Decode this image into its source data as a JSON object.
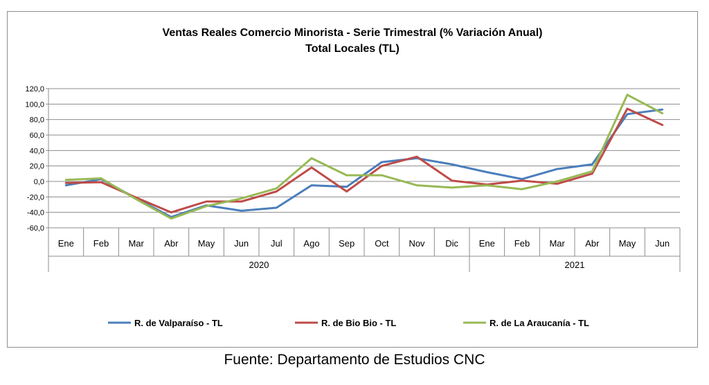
{
  "chart_data": {
    "type": "line",
    "title": "Ventas Reales Comercio Minorista - Serie Trimestral (% Variación Anual)",
    "subtitle": "Total Locales (TL)",
    "categories": [
      "Ene",
      "Feb",
      "Mar",
      "Abr",
      "May",
      "Jun",
      "Jul",
      "Ago",
      "Sep",
      "Oct",
      "Nov",
      "Dic",
      "Ene",
      "Feb",
      "Mar",
      "Abr",
      "May",
      "Jun"
    ],
    "groups": [
      {
        "label": "2020",
        "start": 0,
        "end": 11
      },
      {
        "label": "2021",
        "start": 12,
        "end": 17
      }
    ],
    "ylim": [
      -60,
      120
    ],
    "yticks": [
      "-60,0",
      "-40,0",
      "-20,0",
      "0,0",
      "20,0",
      "40,0",
      "60,0",
      "80,0",
      "100,0",
      "120,0"
    ],
    "grid": true,
    "legend_position": "bottom",
    "series": [
      {
        "name": "R. de Valparaíso - TL",
        "color": "#4a7ebb",
        "values": [
          -5,
          3,
          -22,
          -46,
          -31,
          -38,
          -34,
          -5,
          -7,
          25,
          30,
          22,
          12,
          3,
          16,
          22,
          87,
          93
        ]
      },
      {
        "name": "R. de Bio Bio - TL",
        "color": "#be4b48",
        "values": [
          -2,
          -1,
          -21,
          -40,
          -26,
          -26,
          -13,
          18,
          -13,
          20,
          32,
          1,
          -4,
          1,
          -3,
          10,
          94,
          73
        ]
      },
      {
        "name": "R. de La Araucanía - TL",
        "color": "#98b954",
        "values": [
          2,
          4,
          -23,
          -48,
          -32,
          -22,
          -9,
          30,
          8,
          8,
          -5,
          -8,
          -5,
          -10,
          0,
          13,
          112,
          88
        ]
      }
    ]
  },
  "source": "Fuente: Departamento de Estudios CNC"
}
